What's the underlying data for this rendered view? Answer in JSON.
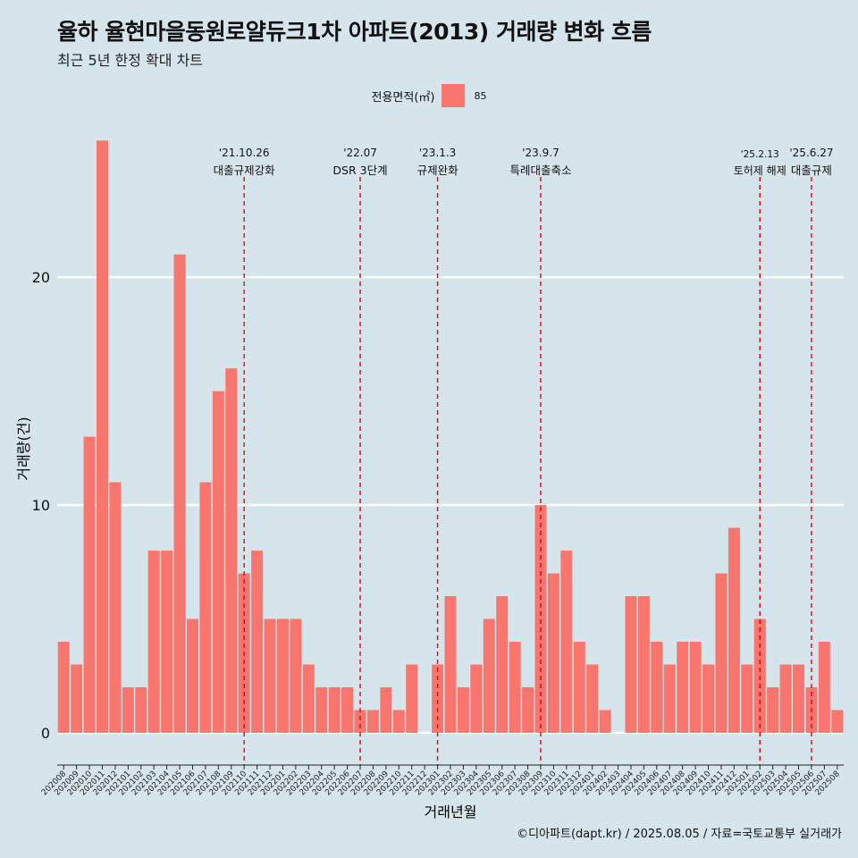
{
  "title": "율하 율현마을동원로얄듀크1차 아파트(2013) 거래량 변화 흐름",
  "subtitle": "최근 5년 한정 확대 차트",
  "legend": {
    "title": "전용면적(㎡)",
    "entries": [
      {
        "label": "85",
        "color": "#f8766d"
      }
    ]
  },
  "footer": "©디아파트(dapt.kr) / 2025.08.05 / 자료=국토교통부 실거래가",
  "chart_data": {
    "type": "bar",
    "xlabel": "거래년월",
    "ylabel": "거래량(건)",
    "ylim": [
      -1.1,
      26.6
    ],
    "yticks": [
      0,
      10,
      20
    ],
    "grid": true,
    "legend_position": "top",
    "bar_color": "#f8766d",
    "categories": [
      "202008",
      "202009",
      "202010",
      "202011",
      "202012",
      "202101",
      "202102",
      "202103",
      "202104",
      "202105",
      "202106",
      "202107",
      "202108",
      "202109",
      "202110",
      "202111",
      "202112",
      "202201",
      "202202",
      "202203",
      "202204",
      "202205",
      "202206",
      "202207",
      "202208",
      "202209",
      "202210",
      "202211",
      "202212",
      "202301",
      "202302",
      "202303",
      "202304",
      "202305",
      "202306",
      "202307",
      "202308",
      "202309",
      "202310",
      "202311",
      "202312",
      "202401",
      "202402",
      "202403",
      "202404",
      "202405",
      "202406",
      "202407",
      "202408",
      "202409",
      "202410",
      "202411",
      "202412",
      "202501",
      "202502",
      "202503",
      "202504",
      "202505",
      "202506",
      "202507",
      "202508"
    ],
    "series": [
      {
        "values": [
          4,
          3,
          13,
          26,
          11,
          2,
          2,
          8,
          8,
          21,
          5,
          11,
          15,
          16,
          7,
          8,
          5,
          5,
          5,
          3,
          2,
          2,
          2,
          1,
          1,
          2,
          1,
          3,
          0,
          3,
          6,
          2,
          3,
          5,
          6,
          4,
          2,
          10,
          7,
          8,
          4,
          3,
          1,
          0,
          6,
          6,
          4,
          3,
          4,
          4,
          3,
          7,
          9,
          3,
          5,
          2,
          3,
          3,
          2,
          4,
          1
        ]
      }
    ],
    "annotations": [
      {
        "category": "202110",
        "date": "'21.10.26",
        "label": "대출규제강화"
      },
      {
        "category": "202207",
        "date": "'22.07",
        "label": "DSR 3단계"
      },
      {
        "category": "202301",
        "date": "'23.1.3",
        "label": "규제완화"
      },
      {
        "category": "202309",
        "date": "'23.9.7",
        "label": "특례대출축소"
      },
      {
        "category": "202502",
        "date": "'25.2.13",
        "label": "토허제 해제"
      },
      {
        "category": "202506",
        "date": "'25.6.27",
        "label": "대출규제"
      }
    ]
  }
}
